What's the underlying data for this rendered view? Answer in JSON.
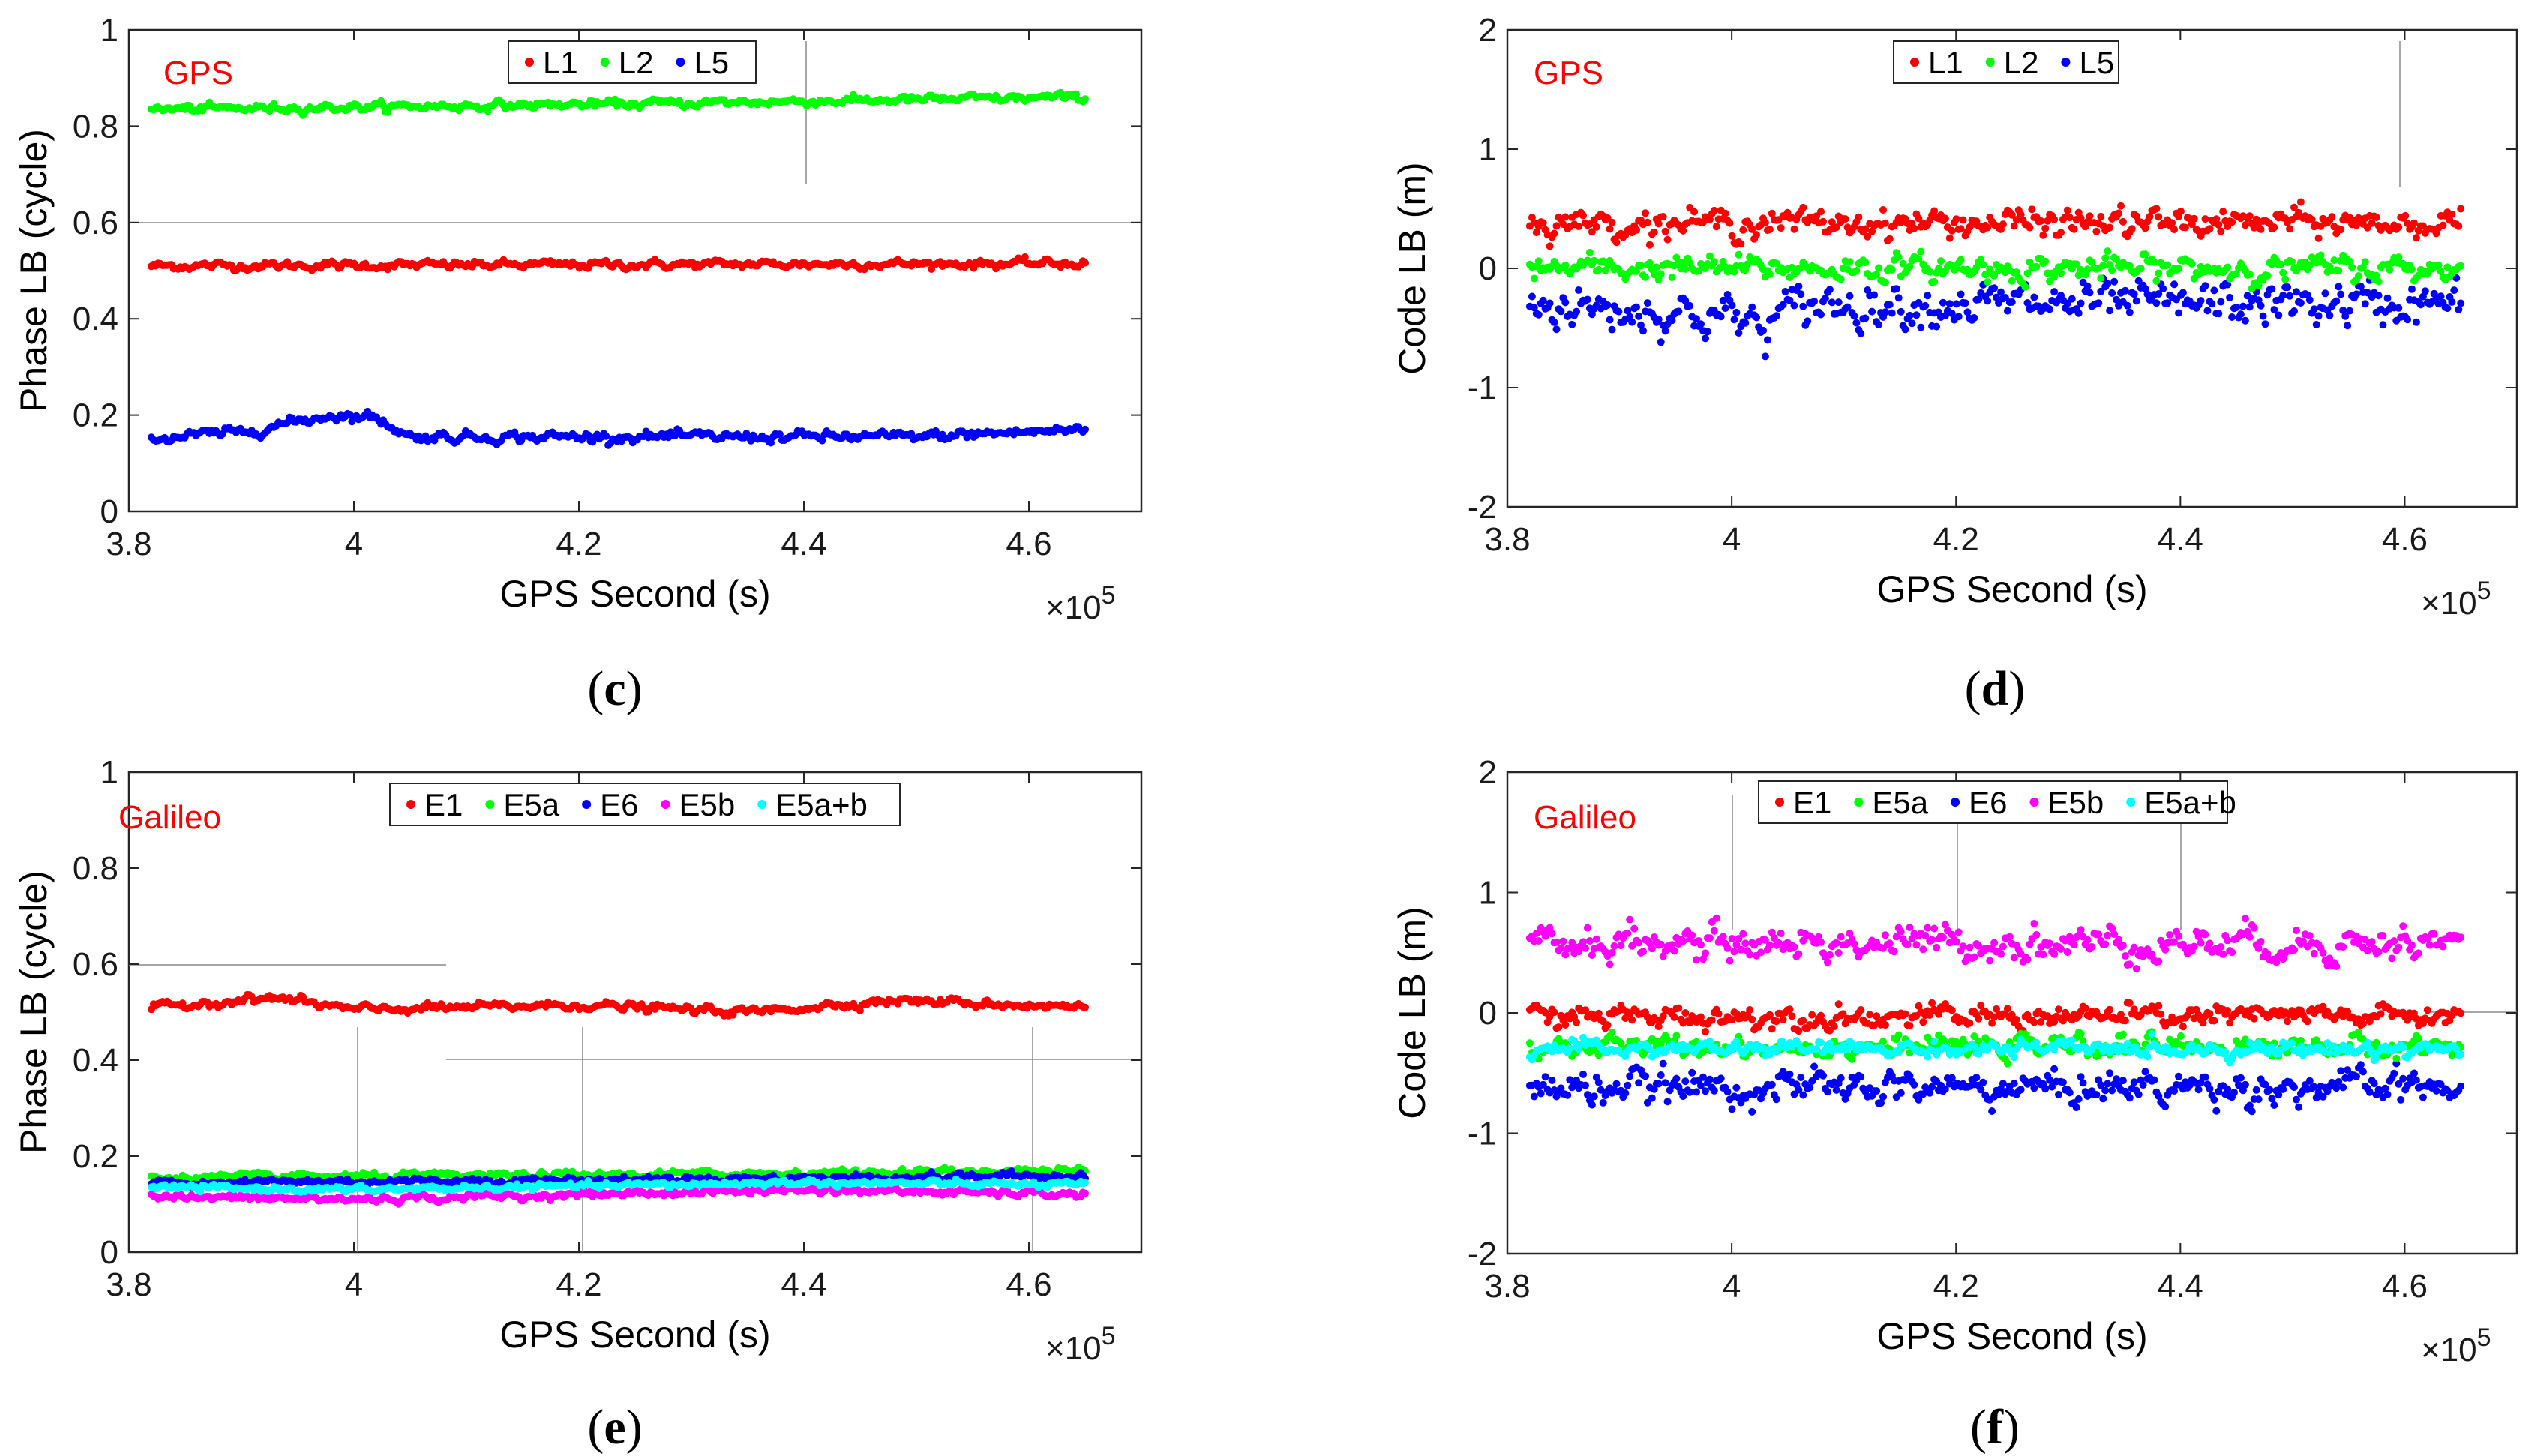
{
  "colors": {
    "L1": "#ff0000",
    "L2": "#00ff00",
    "L5": "#0000ff",
    "E1": "#ff0000",
    "E5a": "#00ff00",
    "E6": "#0000ff",
    "E5b": "#ff00ff",
    "E5a+b": "#00ffff",
    "system_label": "#ff0000"
  },
  "chart_data": [
    {
      "type": "scatter",
      "panel": "c",
      "caption": "c",
      "system": "GPS",
      "xlabel": "GPS Second (s)",
      "ylabel": "Phase LB (cycle)",
      "x_exponent": "×10",
      "x_exponent_power": "5",
      "xlim": [
        3.8,
        4.7
      ],
      "ylim": [
        0,
        1
      ],
      "xticks": [
        3.8,
        4.0,
        4.2,
        4.4,
        4.6
      ],
      "xtick_labels": [
        "3.8",
        "4",
        "4.2",
        "4.4",
        "4.6"
      ],
      "yticks": [
        0,
        0.2,
        0.4,
        0.6,
        0.8,
        1
      ],
      "ytick_labels": [
        "0",
        "0.2",
        "0.4",
        "0.6",
        "0.8",
        "1"
      ],
      "x_range": [
        3.82,
        4.65
      ],
      "legend": [
        "L1",
        "L2",
        "L5"
      ],
      "series": [
        {
          "name": "L1",
          "base": 0.51,
          "noise": 0.008,
          "drift": [
            [
              3.82,
              0.0
            ],
            [
              4.65,
              0.005
            ]
          ]
        },
        {
          "name": "L2",
          "base": 0.845,
          "noise": 0.008,
          "drift": [
            [
              3.82,
              -0.01
            ],
            [
              4.2,
              0.0
            ],
            [
              4.65,
              0.015
            ]
          ]
        },
        {
          "name": "L5",
          "base": 0.155,
          "noise": 0.01,
          "drift": [
            [
              3.82,
              -0.005
            ],
            [
              3.9,
              0.01
            ],
            [
              3.98,
              0.045
            ],
            [
              4.02,
              0.04
            ],
            [
              4.05,
              0.0
            ],
            [
              4.5,
              0.0
            ],
            [
              4.65,
              0.015
            ]
          ]
        }
      ]
    },
    {
      "type": "scatter",
      "panel": "d",
      "caption": "d",
      "system": "GPS",
      "xlabel": "GPS Second (s)",
      "ylabel": "Code LB (m)",
      "x_exponent": "×10",
      "x_exponent_power": "5",
      "xlim": [
        3.8,
        4.7
      ],
      "ylim": [
        -2,
        2
      ],
      "xticks": [
        3.8,
        4.0,
        4.2,
        4.4,
        4.6
      ],
      "xtick_labels": [
        "3.8",
        "4",
        "4.2",
        "4.4",
        "4.6"
      ],
      "yticks": [
        -2,
        -1,
        0,
        1,
        2
      ],
      "ytick_labels": [
        "-2",
        "-1",
        "0",
        "1",
        "2"
      ],
      "x_range": [
        3.82,
        4.65
      ],
      "legend": [
        "L1",
        "L2",
        "L5"
      ],
      "series": [
        {
          "name": "L5",
          "base": -0.3,
          "noise": 0.17,
          "drift": [
            [
              3.82,
              0.0
            ],
            [
              4.0,
              -0.1
            ],
            [
              4.03,
              -0.2
            ],
            [
              4.06,
              0.0
            ],
            [
              4.65,
              0.0
            ]
          ]
        },
        {
          "name": "L2",
          "base": 0.0,
          "noise": 0.1,
          "drift": [
            [
              3.82,
              0.0
            ],
            [
              4.65,
              0.0
            ]
          ]
        },
        {
          "name": "L1",
          "base": 0.38,
          "noise": 0.11,
          "drift": [
            [
              3.82,
              0.0
            ],
            [
              4.65,
              0.0
            ]
          ]
        }
      ]
    },
    {
      "type": "scatter",
      "panel": "e",
      "caption": "e",
      "system": "Galileo",
      "xlabel": "GPS Second (s)",
      "ylabel": "Phase LB (cycle)",
      "x_exponent": "×10",
      "x_exponent_power": "5",
      "xlim": [
        3.8,
        4.7
      ],
      "ylim": [
        0,
        1
      ],
      "xticks": [
        3.8,
        4.0,
        4.2,
        4.4,
        4.6
      ],
      "xtick_labels": [
        "3.8",
        "4",
        "4.2",
        "4.4",
        "4.6"
      ],
      "yticks": [
        0,
        0.2,
        0.4,
        0.6,
        0.8,
        1
      ],
      "ytick_labels": [
        "0",
        "0.2",
        "0.4",
        "0.6",
        "0.8",
        "1"
      ],
      "x_range": [
        3.82,
        4.65
      ],
      "legend": [
        "E1",
        "E5a",
        "E6",
        "E5b",
        "E5a+b"
      ],
      "series": [
        {
          "name": "E1",
          "base": 0.51,
          "noise": 0.008,
          "drift": [
            [
              3.82,
              0.0
            ],
            [
              3.93,
              0.02
            ],
            [
              4.0,
              -0.005
            ],
            [
              4.2,
              0.005
            ],
            [
              4.35,
              -0.01
            ],
            [
              4.48,
              0.015
            ],
            [
              4.65,
              0.0
            ]
          ]
        },
        {
          "name": "E5a",
          "base": 0.16,
          "noise": 0.007,
          "drift": [
            [
              3.82,
              -0.005
            ],
            [
              4.2,
              0.0
            ],
            [
              4.65,
              0.01
            ]
          ]
        },
        {
          "name": "E6",
          "base": 0.15,
          "noise": 0.007,
          "drift": [
            [
              3.82,
              -0.005
            ],
            [
              4.2,
              0.0
            ],
            [
              4.65,
              0.01
            ]
          ]
        },
        {
          "name": "E5b",
          "base": 0.12,
          "noise": 0.007,
          "drift": [
            [
              3.82,
              -0.005
            ],
            [
              4.0,
              -0.01
            ],
            [
              4.4,
              0.01
            ],
            [
              4.65,
              0.0
            ]
          ]
        },
        {
          "name": "E5a+b",
          "base": 0.135,
          "noise": 0.006,
          "drift": [
            [
              3.82,
              0.0
            ],
            [
              4.0,
              -0.005
            ],
            [
              4.4,
              0.01
            ],
            [
              4.65,
              0.005
            ]
          ]
        }
      ]
    },
    {
      "type": "scatter",
      "panel": "f",
      "caption": "f",
      "system": "Galileo",
      "xlabel": "GPS Second (s)",
      "ylabel": "Code LB (m)",
      "x_exponent": "×10",
      "x_exponent_power": "5",
      "xlim": [
        3.8,
        4.7
      ],
      "ylim": [
        -2,
        2
      ],
      "xticks": [
        3.8,
        4.0,
        4.2,
        4.4,
        4.6
      ],
      "xtick_labels": [
        "3.8",
        "4",
        "4.2",
        "4.4",
        "4.6"
      ],
      "yticks": [
        -2,
        -1,
        0,
        1,
        2
      ],
      "ytick_labels": [
        "-2",
        "-1",
        "0",
        "1",
        "2"
      ],
      "x_range": [
        3.82,
        4.65
      ],
      "legend": [
        "E1",
        "E5a",
        "E6",
        "E5b",
        "E5a+b"
      ],
      "series": [
        {
          "name": "E5b",
          "base": 0.58,
          "noise": 0.14,
          "drift": [
            [
              3.82,
              0.0
            ],
            [
              4.65,
              0.0
            ]
          ]
        },
        {
          "name": "E6",
          "base": -0.62,
          "noise": 0.13,
          "drift": [
            [
              3.82,
              0.0
            ],
            [
              4.65,
              0.0
            ]
          ]
        },
        {
          "name": "E1",
          "base": -0.03,
          "noise": 0.09,
          "drift": [
            [
              3.82,
              0.0
            ],
            [
              4.65,
              0.0
            ]
          ]
        },
        {
          "name": "E5a",
          "base": -0.28,
          "noise": 0.08,
          "drift": [
            [
              3.82,
              0.0
            ],
            [
              4.65,
              0.0
            ]
          ]
        },
        {
          "name": "E5a+b",
          "base": -0.3,
          "noise": 0.06,
          "drift": [
            [
              3.82,
              0.0
            ],
            [
              4.65,
              0.0
            ]
          ]
        }
      ]
    }
  ]
}
